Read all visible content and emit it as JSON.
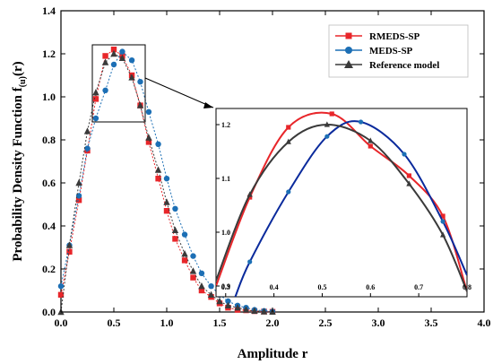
{
  "chart_data": {
    "type": "line",
    "xlabel": "Amplitude r",
    "ylabel": "Probability Density Function f",
    "ylabel_subscript": "(u)",
    "ylabel_suffix": "(r)",
    "xlim": [
      0.0,
      4.0
    ],
    "ylim": [
      0.0,
      1.4
    ],
    "xticks": [
      "0.0",
      "0.5",
      "1.0",
      "1.5",
      "2.0",
      "2.5",
      "3.0",
      "3.5",
      "4.0"
    ],
    "yticks": [
      "0.0",
      "0.2",
      "0.4",
      "0.6",
      "0.8",
      "1.0",
      "1.2",
      "1.4"
    ],
    "grid": false,
    "legend_position": "top-right",
    "series": [
      {
        "name": "RMEDS-SP",
        "color": "#e8262a",
        "marker": "square",
        "x": [
          0.0,
          0.08,
          0.17,
          0.25,
          0.33,
          0.42,
          0.5,
          0.58,
          0.67,
          0.75,
          0.83,
          0.92,
          1.0,
          1.08,
          1.17,
          1.25,
          1.33,
          1.42,
          1.5,
          1.58,
          1.67,
          1.75,
          1.83,
          1.92,
          2.0
        ],
        "y": [
          0.08,
          0.28,
          0.52,
          0.75,
          0.99,
          1.19,
          1.22,
          1.19,
          1.1,
          0.96,
          0.79,
          0.62,
          0.47,
          0.34,
          0.24,
          0.16,
          0.1,
          0.07,
          0.04,
          0.02,
          0.01,
          0.008,
          0.004,
          0.002,
          0.001
        ]
      },
      {
        "name": "MEDS-SP",
        "color": "#1c6fb5",
        "marker": "circle",
        "x": [
          0.0,
          0.08,
          0.17,
          0.25,
          0.33,
          0.42,
          0.5,
          0.58,
          0.67,
          0.75,
          0.83,
          0.92,
          1.0,
          1.08,
          1.17,
          1.25,
          1.33,
          1.42,
          1.5,
          1.58,
          1.67,
          1.75,
          1.83,
          1.92,
          2.0
        ],
        "y": [
          0.12,
          0.31,
          0.54,
          0.76,
          0.9,
          1.03,
          1.15,
          1.21,
          1.17,
          1.07,
          0.93,
          0.78,
          0.62,
          0.48,
          0.36,
          0.26,
          0.18,
          0.12,
          0.08,
          0.05,
          0.03,
          0.02,
          0.01,
          0.005,
          0.002
        ]
      },
      {
        "name": "Reference model",
        "color": "#3a3a3a",
        "marker": "triangle",
        "x": [
          0.0,
          0.08,
          0.17,
          0.25,
          0.33,
          0.42,
          0.5,
          0.58,
          0.67,
          0.75,
          0.83,
          0.92,
          1.0,
          1.08,
          1.17,
          1.25,
          1.33,
          1.42,
          1.5,
          1.58,
          1.67,
          1.75,
          1.83,
          1.92,
          2.0
        ],
        "y": [
          0.0,
          0.31,
          0.6,
          0.84,
          1.02,
          1.16,
          1.2,
          1.18,
          1.09,
          0.96,
          0.81,
          0.66,
          0.51,
          0.38,
          0.27,
          0.19,
          0.12,
          0.08,
          0.05,
          0.03,
          0.02,
          0.01,
          0.005,
          0.002,
          0.001
        ]
      }
    ],
    "inset": {
      "xlim": [
        0.28,
        0.8
      ],
      "ylim": [
        0.88,
        1.23
      ],
      "xticks": [
        "0.3",
        "0.4",
        "0.5",
        "0.6",
        "0.7",
        "0.8"
      ],
      "yticks": [
        "0.9",
        "1.0",
        "1.1",
        "1.2"
      ],
      "zoom_region": {
        "x": [
          0.3,
          0.8
        ],
        "y": [
          0.9,
          1.22
        ]
      },
      "series": [
        {
          "name": "RMEDS-SP",
          "x": [
            0.28,
            0.35,
            0.43,
            0.52,
            0.6,
            0.68,
            0.75,
            0.8
          ],
          "y": [
            0.9,
            1.065,
            1.195,
            1.22,
            1.16,
            1.105,
            1.03,
            0.89
          ]
        },
        {
          "name": "MEDS-SP",
          "x": [
            0.32,
            0.35,
            0.43,
            0.51,
            0.58,
            0.67,
            0.75,
            0.8
          ],
          "y": [
            0.88,
            0.945,
            1.075,
            1.178,
            1.205,
            1.145,
            1.02,
            0.92
          ]
        },
        {
          "name": "Reference model",
          "x": [
            0.28,
            0.35,
            0.43,
            0.51,
            0.6,
            0.68,
            0.75,
            0.8
          ],
          "y": [
            0.91,
            1.07,
            1.168,
            1.2,
            1.17,
            1.09,
            0.995,
            0.89
          ]
        }
      ]
    }
  }
}
